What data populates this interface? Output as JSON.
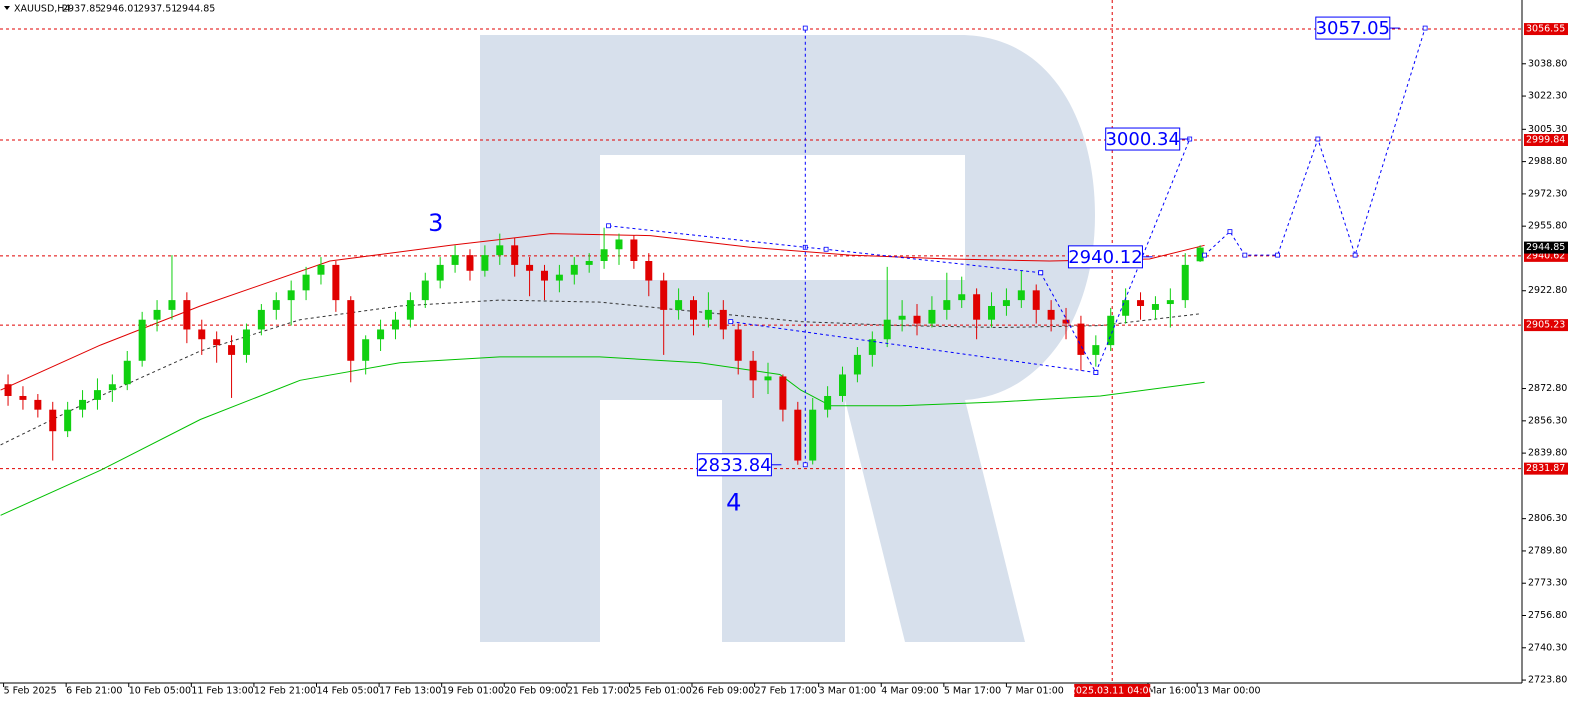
{
  "chart_data": {
    "type": "candlestick",
    "symbol": "XAUUSD,H4",
    "header_ohlc": [
      2937.85,
      2946.01,
      2937.51,
      2944.85
    ],
    "up_color": "#10d010",
    "down_color": "#e00000",
    "grid": false,
    "xlim": [
      -0.54,
      101.6
    ],
    "ylim": [
      2722.3,
      3071.4
    ],
    "xticks": [
      {
        "value": -0.3,
        "label": "5 Feb 2025"
      },
      {
        "value": 3.9,
        "label": "6 Feb 21:00"
      },
      {
        "value": 8.1,
        "label": "10 Feb 05:00"
      },
      {
        "value": 12.3,
        "label": "11 Feb 13:00"
      },
      {
        "value": 16.5,
        "label": "12 Feb 21:00"
      },
      {
        "value": 20.7,
        "label": "14 Feb 05:00"
      },
      {
        "value": 24.9,
        "label": "17 Feb 13:00"
      },
      {
        "value": 29.1,
        "label": "19 Feb 01:00"
      },
      {
        "value": 33.3,
        "label": "20 Feb 09:00"
      },
      {
        "value": 37.5,
        "label": "21 Feb 17:00"
      },
      {
        "value": 41.7,
        "label": "25 Feb 01:00"
      },
      {
        "value": 45.9,
        "label": "26 Feb 09:00"
      },
      {
        "value": 50.1,
        "label": "27 Feb 17:00"
      },
      {
        "value": 54.4,
        "label": "3 Mar 01:00"
      },
      {
        "value": 58.6,
        "label": "4 Mar 09:00"
      },
      {
        "value": 62.8,
        "label": "5 Mar 17:00"
      },
      {
        "value": 67.0,
        "label": "7 Mar 01:00"
      },
      {
        "value": 76.5,
        "label": "Mar 16:00"
      },
      {
        "value": 79.8,
        "label": "13 Mar 00:00"
      }
    ],
    "marker_tick": {
      "value": 74.1,
      "label": "2025.03.11 04:00"
    },
    "yticks": [
      {
        "value": 3038.8,
        "label": "3038.80"
      },
      {
        "value": 3022.3,
        "label": "3022.30"
      },
      {
        "value": 3005.3,
        "label": "3005.30"
      },
      {
        "value": 2988.8,
        "label": "2988.80"
      },
      {
        "value": 2972.3,
        "label": "2972.30"
      },
      {
        "value": 2955.8,
        "label": "2955.80"
      },
      {
        "value": 2922.8,
        "label": "2922.80"
      },
      {
        "value": 2872.8,
        "label": "2872.80"
      },
      {
        "value": 2856.3,
        "label": "2856.30"
      },
      {
        "value": 2839.8,
        "label": "2839.80"
      },
      {
        "value": 2806.3,
        "label": "2806.30"
      },
      {
        "value": 2789.8,
        "label": "2789.80"
      },
      {
        "value": 2773.3,
        "label": "2773.30"
      },
      {
        "value": 2756.8,
        "label": "2756.80"
      },
      {
        "value": 2740.3,
        "label": "2740.30"
      },
      {
        "value": 2723.8,
        "label": "2723.80"
      }
    ],
    "price_levels": [
      3056.55,
      2999.84,
      2940.62,
      2905.23,
      2831.87
    ],
    "level_color": "#e00000",
    "candles": [
      [
        2875,
        2880,
        2864,
        2869
      ],
      [
        2869,
        2874,
        2862,
        2867
      ],
      [
        2867,
        2870,
        2858,
        2862
      ],
      [
        2862,
        2866,
        2836,
        2851
      ],
      [
        2851,
        2866,
        2848,
        2862
      ],
      [
        2862,
        2872,
        2858,
        2867
      ],
      [
        2867,
        2878,
        2862,
        2872
      ],
      [
        2872,
        2880,
        2866,
        2875
      ],
      [
        2875,
        2892,
        2872,
        2887
      ],
      [
        2887,
        2912,
        2884,
        2908
      ],
      [
        2908,
        2918,
        2902,
        2913
      ],
      [
        2913,
        2941,
        2908,
        2918
      ],
      [
        2918,
        2922,
        2896,
        2903
      ],
      [
        2903,
        2908,
        2890,
        2898
      ],
      [
        2898,
        2902,
        2886,
        2895
      ],
      [
        2895,
        2900,
        2868,
        2890
      ],
      [
        2890,
        2906,
        2886,
        2903
      ],
      [
        2903,
        2916,
        2900,
        2913
      ],
      [
        2913,
        2922,
        2908,
        2918
      ],
      [
        2918,
        2928,
        2905,
        2923
      ],
      [
        2923,
        2935,
        2918,
        2931
      ],
      [
        2931,
        2940,
        2926,
        2936
      ],
      [
        2936,
        2938,
        2912,
        2918
      ],
      [
        2918,
        2920,
        2876,
        2887
      ],
      [
        2887,
        2900,
        2880,
        2898
      ],
      [
        2898,
        2908,
        2892,
        2903
      ],
      [
        2903,
        2912,
        2898,
        2908
      ],
      [
        2908,
        2922,
        2904,
        2918
      ],
      [
        2918,
        2932,
        2914,
        2928
      ],
      [
        2928,
        2940,
        2924,
        2936
      ],
      [
        2936,
        2946,
        2932,
        2941
      ],
      [
        2941,
        2944,
        2928,
        2933
      ],
      [
        2933,
        2946,
        2930,
        2941
      ],
      [
        2941,
        2952,
        2936,
        2946
      ],
      [
        2946,
        2950,
        2930,
        2936
      ],
      [
        2936,
        2940,
        2920,
        2933
      ],
      [
        2933,
        2936,
        2918,
        2928
      ],
      [
        2928,
        2936,
        2922,
        2931
      ],
      [
        2931,
        2940,
        2926,
        2936
      ],
      [
        2936,
        2942,
        2932,
        2938
      ],
      [
        2938,
        2955,
        2934,
        2944
      ],
      [
        2944,
        2952,
        2936,
        2949
      ],
      [
        2949,
        2951,
        2934,
        2938
      ],
      [
        2938,
        2942,
        2920,
        2928
      ],
      [
        2928,
        2932,
        2890,
        2913
      ],
      [
        2913,
        2924,
        2908,
        2918
      ],
      [
        2918,
        2920,
        2900,
        2908
      ],
      [
        2908,
        2922,
        2904,
        2913
      ],
      [
        2913,
        2918,
        2898,
        2903
      ],
      [
        2903,
        2906,
        2880,
        2887
      ],
      [
        2887,
        2892,
        2868,
        2877
      ],
      [
        2877,
        2886,
        2870,
        2879
      ],
      [
        2879,
        2880,
        2856,
        2862
      ],
      [
        2862,
        2866,
        2833.84,
        2836
      ],
      [
        2836,
        2868,
        2834,
        2862
      ],
      [
        2862,
        2874,
        2858,
        2869
      ],
      [
        2869,
        2884,
        2866,
        2880
      ],
      [
        2880,
        2894,
        2876,
        2890
      ],
      [
        2890,
        2902,
        2884,
        2898
      ],
      [
        2898,
        2935,
        2894,
        2908
      ],
      [
        2908,
        2918,
        2902,
        2910
      ],
      [
        2910,
        2916,
        2900,
        2906
      ],
      [
        2906,
        2920,
        2904,
        2913
      ],
      [
        2913,
        2932,
        2908,
        2918
      ],
      [
        2918,
        2930,
        2914,
        2921
      ],
      [
        2921,
        2924,
        2898,
        2908
      ],
      [
        2908,
        2922,
        2904,
        2915
      ],
      [
        2915,
        2924,
        2910,
        2918
      ],
      [
        2918,
        2933,
        2914,
        2923
      ],
      [
        2923,
        2926,
        2906,
        2913
      ],
      [
        2913,
        2918,
        2902,
        2908
      ],
      [
        2908,
        2914,
        2898,
        2906
      ],
      [
        2906,
        2910,
        2882,
        2890
      ],
      [
        2890,
        2900,
        2884,
        2895
      ],
      [
        2895,
        2914,
        2892,
        2910
      ],
      [
        2910,
        2924,
        2906,
        2918
      ],
      [
        2918,
        2922,
        2908,
        2915
      ],
      [
        2913,
        2920,
        2908,
        2916
      ],
      [
        2916,
        2924,
        2904,
        2918
      ],
      [
        2918,
        2942,
        2914,
        2936
      ],
      [
        2937.85,
        2946.01,
        2937.51,
        2944.85
      ]
    ],
    "indicators": [
      {
        "color": "#e00000",
        "dashed": false,
        "x": [
          -0.5,
          6.2,
          12.9,
          21.6,
          29.7,
          36.4,
          43.1,
          49.8,
          56.5,
          63.2,
          69.9,
          76.6,
          80.3
        ],
        "values": [
          2872,
          2895,
          2915,
          2938,
          2946,
          2952,
          2951,
          2945,
          2941,
          2939,
          2938,
          2939,
          2946
        ]
      },
      {
        "color": "#333333",
        "dashed": true,
        "x": [
          -0.5,
          6.2,
          12.9,
          19.6,
          26.3,
          33.0,
          39.7,
          46.4,
          53.2,
          59.9,
          66.6,
          73.3,
          80.0
        ],
        "values": [
          2844,
          2869,
          2892,
          2908,
          2915,
          2918,
          2917,
          2912,
          2907,
          2905,
          2904,
          2905,
          2911
        ]
      },
      {
        "color": "#00c000",
        "dashed": false,
        "x": [
          -0.5,
          6.2,
          12.9,
          19.6,
          26.3,
          33.0,
          39.7,
          46.4,
          51.8,
          53.2,
          55.2,
          59.9,
          66.6,
          73.3,
          80.3
        ],
        "values": [
          2808,
          2831,
          2857,
          2877,
          2886,
          2889,
          2889,
          2886,
          2880,
          2872,
          2864,
          2864,
          2866,
          2869,
          2876
        ]
      }
    ],
    "wave_color": "#0000ff",
    "wave_lines": [
      {
        "x": [
          40.3,
          53.5,
          54.9,
          69.3
        ],
        "values": [
          2956,
          2945,
          2944,
          2932
        ]
      },
      {
        "x": [
          48.5,
          73.0
        ],
        "values": [
          2907,
          2881
        ]
      },
      {
        "x": [
          69.3,
          73.0,
          79.3
        ],
        "values": [
          2932,
          2881,
          3000.34
        ]
      },
      {
        "x": [
          80.3,
          82.0,
          83.0,
          85.2,
          87.9,
          90.4,
          95.1
        ],
        "values": [
          2941,
          2953,
          2941,
          2941,
          3000.34,
          2941,
          3057.05
        ]
      },
      {
        "x": [
          53.5,
          53.5
        ],
        "values": [
          2833.84,
          3057.05
        ]
      }
    ],
    "value_boxes": [
      {
        "value": 3057.05,
        "x": 93.4
      },
      {
        "value": 3000.34,
        "x": 79.3
      },
      {
        "value": 2940.12,
        "x": 76.8
      },
      {
        "value": 2833.84,
        "x": 51.9
      }
    ],
    "wave_labels": [
      {
        "label": "3",
        "x": 28.7,
        "y": 2957
      },
      {
        "label": "4",
        "x": 48.7,
        "y": 2814
      }
    ]
  }
}
